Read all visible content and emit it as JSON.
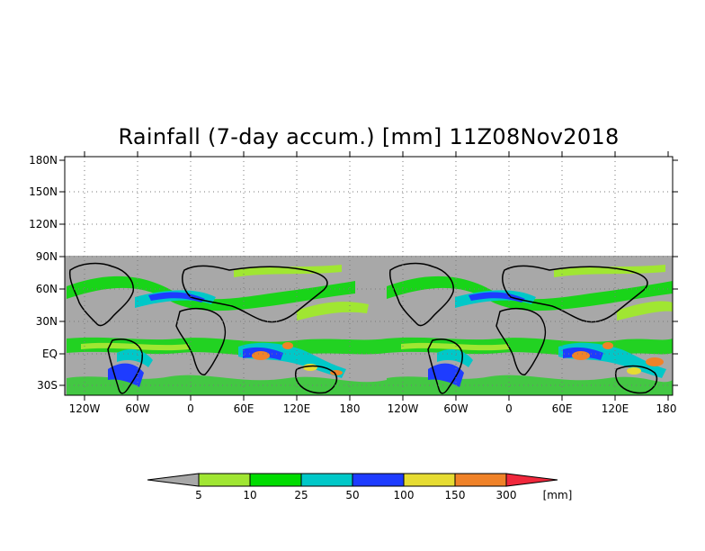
{
  "title": "Rainfall (7-day accum.) [mm] 11Z08Nov2018",
  "map": {
    "lat_labels": [
      "180N",
      "150N",
      "120N",
      "90N",
      "60N",
      "30N",
      "EQ",
      "30S"
    ],
    "lon_labels": [
      "120W",
      "60W",
      "0",
      "60E",
      "120E",
      "180",
      "120W",
      "60W",
      "0",
      "60E",
      "120E",
      "180"
    ],
    "no_data_color": "#a8a8a8",
    "land_outline_color": "#000000",
    "grid": "dotted"
  },
  "colorbar": {
    "tick_labels": [
      "5",
      "10",
      "25",
      "50",
      "100",
      "150",
      "300"
    ],
    "unit": "[mm]",
    "colors": [
      "#a8a8a8",
      "#a0e632",
      "#00dc00",
      "#00c8c8",
      "#1e3cff",
      "#e6dc32",
      "#f08228",
      "#f0283c"
    ]
  }
}
